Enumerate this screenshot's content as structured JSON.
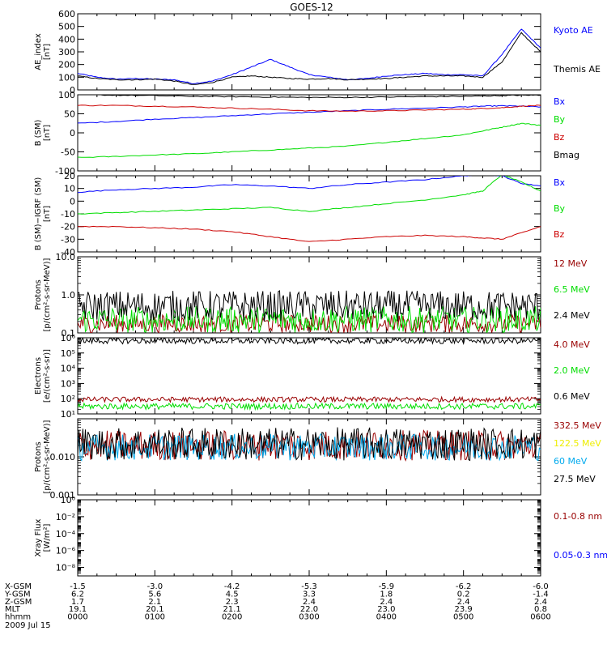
{
  "title": "GOES-12",
  "colors": {
    "black": "#000000",
    "blue": "#0000ff",
    "red": "#cc0000",
    "green": "#00dd00",
    "darkred": "#990000",
    "cyan": "#00aaee",
    "yellow": "#eeee00"
  },
  "panels": [
    {
      "id": "ae",
      "ylabel": [
        "AE_index",
        "[nT]"
      ],
      "yscale": "linear",
      "ylim": [
        0,
        600
      ],
      "ticks": [
        {
          "v": 0,
          "l": "0"
        },
        {
          "v": 100,
          "l": "100"
        },
        {
          "v": 200,
          "l": "200"
        },
        {
          "v": 300,
          "l": "300"
        },
        {
          "v": 400,
          "l": "400"
        },
        {
          "v": 500,
          "l": "500"
        },
        {
          "v": 600,
          "l": "600"
        }
      ],
      "legend": [
        {
          "label": "Kyoto AE",
          "color": "blue"
        },
        {
          "label": "Themis AE",
          "color": "black"
        }
      ]
    },
    {
      "id": "bsm",
      "ylabel": [
        "B (SM)",
        "[nT]"
      ],
      "yscale": "linear",
      "ylim": [
        -100,
        100
      ],
      "ticks": [
        {
          "v": -100,
          "l": "-100"
        },
        {
          "v": -50,
          "l": "-50"
        },
        {
          "v": 0,
          "l": "0"
        },
        {
          "v": 50,
          "l": "50"
        },
        {
          "v": 100,
          "l": "100"
        }
      ],
      "legend": [
        {
          "label": "Bx",
          "color": "blue"
        },
        {
          "label": "By",
          "color": "green"
        },
        {
          "label": "Bz",
          "color": "red"
        },
        {
          "label": "Bmag",
          "color": "black"
        }
      ]
    },
    {
      "id": "bigrf",
      "ylabel": [
        "B (SM)−IGRF (SM)",
        "[nT]"
      ],
      "yscale": "linear",
      "ylim": [
        -40,
        20
      ],
      "ticks": [
        {
          "v": -40,
          "l": "-40"
        },
        {
          "v": -30,
          "l": "-30"
        },
        {
          "v": -20,
          "l": "-20"
        },
        {
          "v": -10,
          "l": "-10"
        },
        {
          "v": 0,
          "l": "0"
        },
        {
          "v": 10,
          "l": "10"
        },
        {
          "v": 20,
          "l": "20"
        }
      ],
      "legend": [
        {
          "label": "Bx",
          "color": "blue"
        },
        {
          "label": "By",
          "color": "green"
        },
        {
          "label": "Bz",
          "color": "red"
        }
      ]
    },
    {
      "id": "protonsA",
      "ylabel": [
        "Protons",
        "[p/(cm²-s-sr-MeV)]"
      ],
      "yscale": "log",
      "ylim": [
        0.1,
        10
      ],
      "ticks": [
        {
          "v": 0.1,
          "l": "0.1"
        },
        {
          "v": 1,
          "l": "1.0"
        },
        {
          "v": 10,
          "l": "10.0"
        }
      ],
      "legend": [
        {
          "label": "12 MeV",
          "color": "darkred"
        },
        {
          "label": "6.5 MeV",
          "color": "green"
        },
        {
          "label": "2.4 MeV",
          "color": "black"
        }
      ]
    },
    {
      "id": "electrons",
      "ylabel": [
        "Electrons",
        "[e/(cm²-s-sr)]"
      ],
      "yscale": "log",
      "ylim": [
        10,
        1000000
      ],
      "ticks": [
        {
          "v": 10,
          "l": "10¹"
        },
        {
          "v": 100,
          "l": "10²"
        },
        {
          "v": 1000,
          "l": "10³"
        },
        {
          "v": 10000,
          "l": "10⁴"
        },
        {
          "v": 100000,
          "l": "10⁵"
        },
        {
          "v": 1000000,
          "l": "10⁶"
        }
      ],
      "legend": [
        {
          "label": "4.0 MeV",
          "color": "darkred"
        },
        {
          "label": "2.0 MeV",
          "color": "green"
        },
        {
          "label": "0.6 MeV",
          "color": "black"
        }
      ]
    },
    {
      "id": "protonsB",
      "ylabel": [
        "Protons",
        "[p/(cm²-s-sr-MeV)]"
      ],
      "yscale": "log",
      "ylim": [
        0.001,
        0.1
      ],
      "ticks": [
        {
          "v": 0.001,
          "l": "0.001"
        },
        {
          "v": 0.01,
          "l": "0.010"
        },
        {
          "v": 0.1,
          "l": ""
        }
      ],
      "legend": [
        {
          "label": "332.5 MeV",
          "color": "darkred"
        },
        {
          "label": "122.5 MeV",
          "color": "yellow"
        },
        {
          "label": "60 MeV",
          "color": "cyan"
        },
        {
          "label": "27.5 MeV",
          "color": "black"
        }
      ]
    },
    {
      "id": "xray",
      "ylabel": [
        "Xray Flux",
        "[W/m²]"
      ],
      "yscale": "log",
      "ylim": [
        1e-09,
        1
      ],
      "ticks": [
        {
          "v": 1e-08,
          "l": "10⁻⁸"
        },
        {
          "v": 1e-06,
          "l": "10⁻⁶"
        },
        {
          "v": 0.0001,
          "l": "10⁻⁴"
        },
        {
          "v": 0.01,
          "l": "10⁻²"
        },
        {
          "v": 1,
          "l": "10⁰"
        }
      ],
      "legend": [
        {
          "label": "0.1-0.8 nm",
          "color": "darkred"
        },
        {
          "label": "0.05-0.3 nm",
          "color": "blue"
        }
      ]
    }
  ],
  "xaxis": {
    "rows": [
      {
        "name": "X-GSM",
        "values": [
          "-1.5",
          "-3.0",
          "-4.2",
          "-5.3",
          "-5.9",
          "-6.2",
          "-6.0"
        ]
      },
      {
        "name": "Y-GSM",
        "values": [
          "6.2",
          "5.6",
          "4.5",
          "3.3",
          "1.8",
          "0.2",
          "-1.4"
        ]
      },
      {
        "name": "Z-GSM",
        "values": [
          "1.7",
          "2.1",
          "2.3",
          "2.4",
          "2.4",
          "2.4",
          "2.4"
        ]
      },
      {
        "name": "MLT",
        "values": [
          "19.1",
          "20.1",
          "21.1",
          "22.0",
          "23.0",
          "23.9",
          "0.8"
        ]
      },
      {
        "name": "hhmm",
        "values": [
          "0000",
          "0100",
          "0200",
          "0300",
          "0400",
          "0500",
          "0600"
        ]
      }
    ],
    "date": "2009 Jul 15",
    "hours": [
      0,
      1,
      2,
      3,
      4,
      5,
      6
    ]
  },
  "chart_data": [
    {
      "type": "line",
      "title": "AE_index",
      "ylabel": "AE_index [nT]",
      "x_hours": [
        0,
        0.25,
        0.5,
        0.75,
        1,
        1.25,
        1.5,
        1.75,
        2,
        2.25,
        2.5,
        2.75,
        3,
        3.25,
        3.5,
        3.75,
        4,
        4.25,
        4.5,
        4.75,
        5,
        5.25,
        5.5,
        5.75,
        6
      ],
      "series": [
        {
          "name": "Kyoto AE",
          "color": "blue",
          "values": [
            130,
            100,
            85,
            90,
            85,
            80,
            50,
            70,
            120,
            180,
            240,
            180,
            120,
            100,
            80,
            90,
            110,
            120,
            130,
            120,
            120,
            110,
            280,
            480,
            330
          ]
        },
        {
          "name": "Themis AE",
          "color": "black",
          "values": [
            110,
            90,
            80,
            80,
            85,
            70,
            40,
            60,
            100,
            110,
            100,
            90,
            85,
            90,
            80,
            85,
            90,
            100,
            110,
            110,
            110,
            100,
            220,
            450,
            300
          ]
        }
      ]
    },
    {
      "type": "line",
      "title": "B (SM)",
      "ylabel": "B (SM) [nT]",
      "x_hours": [
        0,
        0.5,
        1,
        1.5,
        2,
        2.5,
        3,
        3.5,
        4,
        4.5,
        5,
        5.25,
        5.5,
        5.75,
        6
      ],
      "series": [
        {
          "name": "Bx",
          "color": "blue",
          "values": [
            25,
            30,
            36,
            40,
            45,
            50,
            54,
            58,
            62,
            65,
            68,
            70,
            71,
            70,
            68
          ]
        },
        {
          "name": "By",
          "color": "green",
          "values": [
            -65,
            -62,
            -58,
            -55,
            -50,
            -45,
            -40,
            -35,
            -25,
            -15,
            -5,
            5,
            15,
            25,
            20
          ]
        },
        {
          "name": "Bz",
          "color": "red",
          "values": [
            72,
            72,
            70,
            68,
            65,
            62,
            58,
            57,
            58,
            60,
            62,
            64,
            66,
            70,
            72
          ]
        },
        {
          "name": "Bmag",
          "color": "black",
          "values": [
            100,
            99,
            98,
            96,
            95,
            94,
            93,
            93,
            94,
            95,
            96,
            97,
            98,
            99,
            99
          ]
        }
      ]
    },
    {
      "type": "line",
      "title": "B (SM)-IGRF (SM)",
      "ylabel": "B (SM)-IGRF (SM) [nT]",
      "x_hours": [
        0,
        0.5,
        1,
        1.5,
        2,
        2.5,
        3,
        3.5,
        4,
        4.5,
        5,
        5.25,
        5.5,
        5.75,
        6
      ],
      "series": [
        {
          "name": "Bx",
          "color": "blue",
          "values": [
            7,
            9,
            10,
            11,
            13,
            12,
            10,
            13,
            15,
            17,
            20,
            21,
            20,
            14,
            12
          ]
        },
        {
          "name": "By",
          "color": "green",
          "values": [
            -10,
            -9,
            -8,
            -7,
            -6,
            -5,
            -8,
            -5,
            -2,
            1,
            5,
            8,
            21,
            15,
            8
          ]
        },
        {
          "name": "Bz",
          "color": "red",
          "values": [
            -20,
            -20,
            -21,
            -22,
            -24,
            -28,
            -32,
            -30,
            -28,
            -27,
            -28,
            -29,
            -30,
            -25,
            -20
          ]
        }
      ]
    },
    {
      "type": "line",
      "title": "Protons",
      "ylabel": "Protons [p/(cm2-s-sr-MeV)]",
      "yscale": "log",
      "series": [
        {
          "name": "12 MeV",
          "color": "darkred",
          "typical": 0.12,
          "range": [
            0.1,
            0.3
          ]
        },
        {
          "name": "6.5 MeV",
          "color": "green",
          "typical": 0.14,
          "range": [
            0.1,
            0.5
          ]
        },
        {
          "name": "2.4 MeV",
          "color": "black",
          "typical": 0.6,
          "range": [
            0.2,
            1.3
          ]
        }
      ]
    },
    {
      "type": "line",
      "title": "Electrons",
      "ylabel": "Electrons [e/(cm2-s-sr)]",
      "yscale": "log",
      "series": [
        {
          "name": "4.0 MeV",
          "color": "darkred",
          "typical": 90,
          "range": [
            60,
            130
          ]
        },
        {
          "name": "2.0 MeV",
          "color": "green",
          "typical": 30,
          "range": [
            20,
            50
          ]
        },
        {
          "name": "0.6 MeV",
          "color": "black",
          "typical": 800000,
          "range": [
            400000,
            1000000
          ]
        }
      ]
    },
    {
      "type": "line",
      "title": "Protons",
      "ylabel": "Protons [p/(cm2-s-sr-MeV)]",
      "yscale": "log",
      "series": [
        {
          "name": "332.5 MeV",
          "color": "darkred",
          "typical": 0.02,
          "range": [
            0.008,
            0.05
          ]
        },
        {
          "name": "60 MeV",
          "color": "cyan",
          "typical": 0.018,
          "range": [
            0.008,
            0.04
          ]
        },
        {
          "name": "27.5 MeV",
          "color": "black",
          "typical": 0.022,
          "range": [
            0.008,
            0.06
          ]
        }
      ]
    },
    {
      "type": "line",
      "title": "Xray Flux",
      "ylabel": "Xray Flux [W/m2]",
      "yscale": "log",
      "series": []
    }
  ]
}
